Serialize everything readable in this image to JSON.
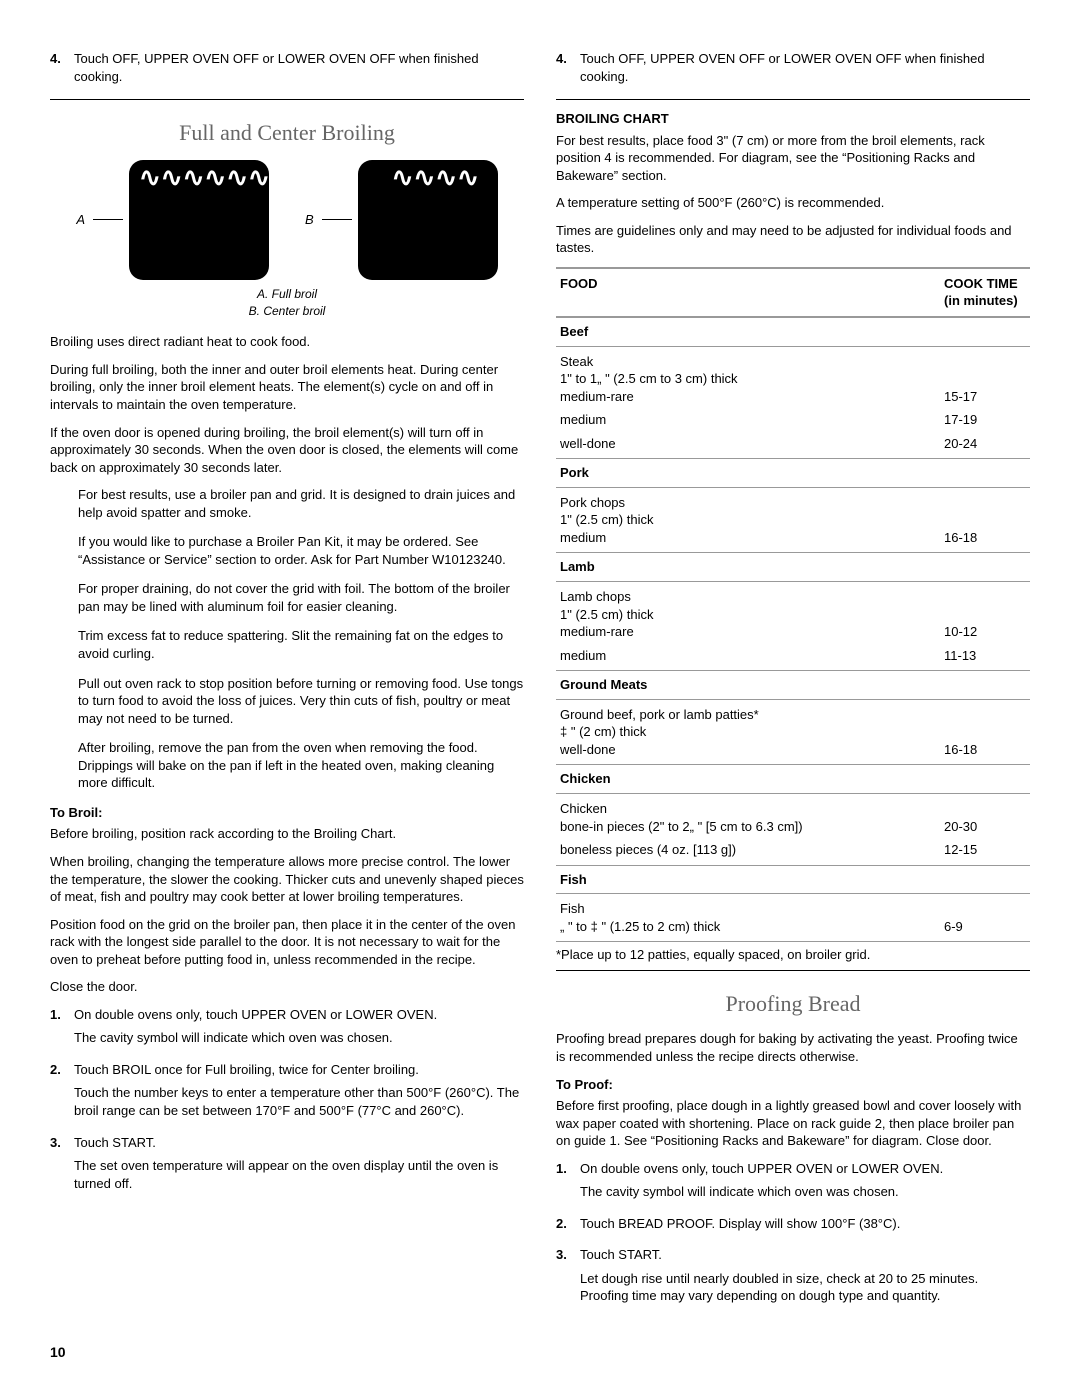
{
  "leftCol": {
    "topStep": {
      "num": "4.",
      "text": "Touch OFF, UPPER OVEN OFF or LOWER OVEN OFF when finished cooking."
    },
    "title": "Full and Center Broiling",
    "diagram": {
      "labelA": "A",
      "labelB": "B",
      "captionA": "A. Full broil",
      "captionB": "B. Center broil"
    },
    "p1": "Broiling uses direct radiant heat to cook food.",
    "p2": "During full broiling, both the inner and outer broil elements heat. During center broiling, only the inner broil element heats. The element(s) cycle on and off in intervals to maintain the oven temperature.",
    "p3": "If the oven door is opened during broiling, the broil element(s) will turn off in approximately 30 seconds. When the oven door is closed, the elements will come back on approximately 30 seconds later.",
    "tips": [
      "For best results, use a broiler pan and grid. It is designed to drain juices and help avoid spatter and smoke.",
      "If you would like to purchase a Broiler Pan Kit, it may be ordered. See “Assistance or Service” section to order. Ask for Part Number W10123240.",
      "For proper draining, do not cover the grid with foil. The bottom of the broiler pan may be lined with aluminum foil for easier cleaning.",
      "Trim excess fat to reduce spattering. Slit the remaining fat on the edges to avoid curling.",
      "Pull out oven rack to stop position before turning or removing food. Use tongs to turn food to avoid the loss of juices. Very thin cuts of fish, poultry or meat may not need to be turned.",
      "After broiling, remove the pan from the oven when removing the food. Drippings will bake on the pan if left in the heated oven, making cleaning more difficult."
    ],
    "toBroilHead": "To Broil:",
    "toBroilP1": "Before broiling, position rack according to the Broiling Chart.",
    "toBroilP2": "When broiling, changing the temperature allows more precise control. The lower the temperature, the slower the cooking. Thicker cuts and unevenly shaped pieces of meat, fish and poultry may cook better at lower broiling temperatures.",
    "toBroilP3": "Position food on the grid on the broiler pan, then place it in the center of the oven rack with the longest side parallel to the door. It is not necessary to wait for the oven to preheat before putting food in, unless recommended in the recipe.",
    "toBroilP4": "Close the door.",
    "toBroilSteps": [
      {
        "num": "1.",
        "l1": "On double ovens only, touch UPPER OVEN or LOWER OVEN.",
        "l2": "The cavity symbol will indicate which oven was chosen."
      },
      {
        "num": "2.",
        "l1": "Touch BROIL once for Full broiling, twice for Center broiling.",
        "l2": "Touch the number keys to enter a temperature other than 500°F (260°C). The broil range can be set between 170°F and 500°F (77°C and 260°C)."
      },
      {
        "num": "3.",
        "l1": "Touch START.",
        "l2": "The set oven temperature will appear on the oven display until the oven is turned off."
      }
    ]
  },
  "rightCol": {
    "topStep": {
      "num": "4.",
      "text": "Touch OFF, UPPER OVEN OFF or LOWER OVEN OFF when finished cooking."
    },
    "chartHead": "BROILING CHART",
    "chartP1": "For best results, place food 3\" (7 cm) or more from the broil elements, rack position 4 is recommended. For diagram, see the “Positioning Racks and Bakeware” section.",
    "chartP2": "A temperature setting of 500°F (260°C) is recommended.",
    "chartP3": "Times are guidelines only and may need to be adjusted for individual foods and tastes.",
    "table": {
      "hFood": "FOOD",
      "hTime1": "COOK TIME",
      "hTime2": "(in minutes)",
      "groups": [
        {
          "cat": "Beef",
          "desc": "Steak\n1\" to 1„ \" (2.5 cm to 3 cm) thick",
          "rows": [
            {
              "l": "medium-rare",
              "t": "15-17"
            },
            {
              "l": "medium",
              "t": "17-19"
            },
            {
              "l": "well-done",
              "t": "20-24"
            }
          ]
        },
        {
          "cat": "Pork",
          "desc": "Pork chops\n1\" (2.5 cm) thick",
          "rows": [
            {
              "l": "medium",
              "t": "16-18"
            }
          ]
        },
        {
          "cat": "Lamb",
          "desc": "Lamb chops\n1\" (2.5 cm) thick",
          "rows": [
            {
              "l": "medium-rare",
              "t": "10-12"
            },
            {
              "l": "medium",
              "t": "11-13"
            }
          ]
        },
        {
          "cat": "Ground Meats",
          "desc": "Ground beef, pork or lamb patties*\n‡ \" (2 cm) thick",
          "rows": [
            {
              "l": "well-done",
              "t": "16-18"
            }
          ]
        },
        {
          "cat": "Chicken",
          "desc": "Chicken",
          "rows": [
            {
              "l": "bone-in pieces (2\" to 2„ \" [5 cm to 6.3 cm])",
              "t": "20-30"
            },
            {
              "l": "boneless pieces (4 oz. [113 g])",
              "t": "12-15"
            }
          ]
        },
        {
          "cat": "Fish",
          "desc": "Fish",
          "rows": [
            {
              "l": "„ \" to ‡ \" (1.25 to 2 cm) thick",
              "t": "6-9"
            }
          ]
        }
      ],
      "footnote": "*Place up to 12 patties, equally spaced, on broiler grid."
    },
    "proofTitle": "Proofing Bread",
    "proofP1": "Proofing bread prepares dough for baking by activating the yeast. Proofing twice is recommended unless the recipe directs otherwise.",
    "toProofHead": "To Proof:",
    "proofP2": "Before first proofing, place dough in a lightly greased bowl and cover loosely with wax paper coated with shortening. Place on rack guide 2, then place broiler pan on guide 1. See “Positioning Racks and Bakeware” for diagram. Close door.",
    "proofSteps": [
      {
        "num": "1.",
        "l1": "On double ovens only, touch UPPER OVEN or LOWER OVEN.",
        "l2": "The cavity symbol will indicate which oven was chosen."
      },
      {
        "num": "2.",
        "l1": "Touch BREAD PROOF. Display will show 100°F (38°C).",
        "l2": ""
      },
      {
        "num": "3.",
        "l1": "Touch START.",
        "l2": "Let dough rise until nearly doubled in size, check at 20 to 25 minutes. Proofing time may vary depending on dough type and quantity."
      }
    ]
  },
  "pageNum": "10"
}
